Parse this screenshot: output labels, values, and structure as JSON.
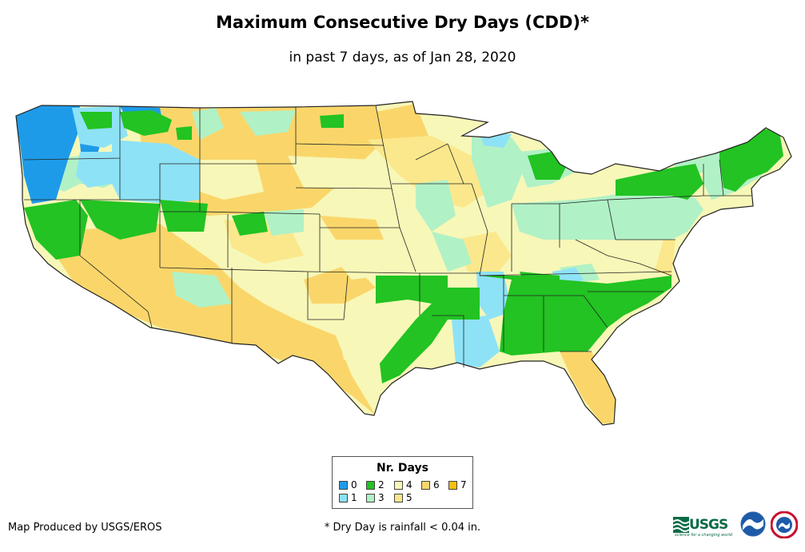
{
  "title": "Maximum Consecutive Dry Days (CDD)*",
  "subtitle": "in past 7 days, as of Jan 28, 2020",
  "legend": {
    "title": "Nr. Days",
    "items": [
      {
        "label": "0",
        "color": "#1e9be8"
      },
      {
        "label": "1",
        "color": "#8ee2f6"
      },
      {
        "label": "2",
        "color": "#22c322"
      },
      {
        "label": "3",
        "color": "#b1f1c6"
      },
      {
        "label": "4",
        "color": "#f7f7b8"
      },
      {
        "label": "5",
        "color": "#fbe88c"
      },
      {
        "label": "6",
        "color": "#fad66a"
      },
      {
        "label": "7",
        "color": "#f7c10e"
      }
    ]
  },
  "credit": "Map Produced by USGS/EROS",
  "footnote": "* Dry Day is rainfall < 0.04 in.",
  "logos": {
    "usgs_text": "USGS",
    "usgs_tagline": "science for a changing world",
    "noaa": "noaa-logo",
    "nws": "nws-logo"
  }
}
